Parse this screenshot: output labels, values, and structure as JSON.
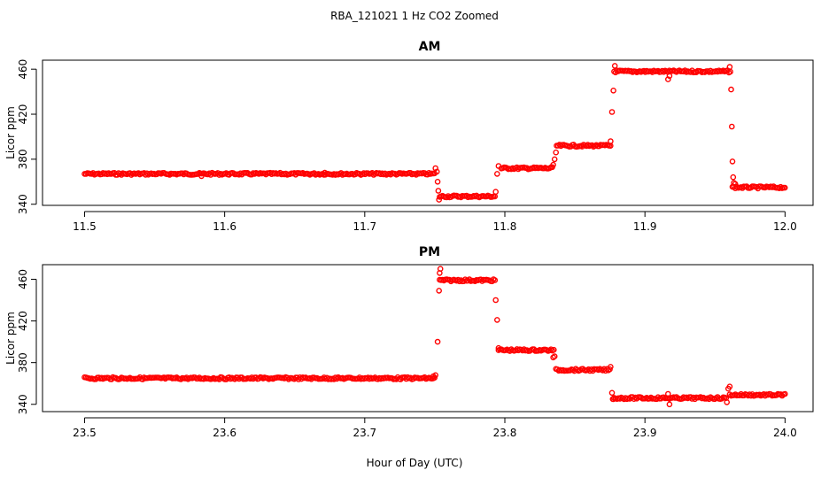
{
  "figure_title": "RBA_121021  1 Hz CO2 Zoomed",
  "shared_xlabel": "Hour of Day (UTC)",
  "marker_color": "#ff0000",
  "chart_data": [
    {
      "type": "scatter",
      "title": "AM",
      "ylabel": "Licor ppm",
      "xlim": [
        11.47,
        12.02
      ],
      "ylim": [
        339,
        468
      ],
      "xticks": [
        "11.5",
        "11.6",
        "11.7",
        "11.8",
        "11.9",
        "12.0"
      ],
      "yticks": [
        "340",
        "380",
        "420",
        "460"
      ],
      "grid": false,
      "segments": [
        {
          "x": [
            11.5,
            11.7505
          ],
          "y": 367
        },
        {
          "x": [
            11.7535,
            11.7935
          ],
          "y": 347
        },
        {
          "x": [
            11.7975,
            11.8345
          ],
          "y": 372
        },
        {
          "x": [
            11.837,
            11.8755
          ],
          "y": 392
        },
        {
          "x": [
            11.878,
            11.961
          ],
          "y": 458
        },
        {
          "x": [
            11.9625,
            12.0
          ],
          "y": 355
        }
      ],
      "points": [
        [
          11.5835,
          365
        ],
        [
          11.6715,
          368
        ],
        [
          11.7505,
          372
        ],
        [
          11.7515,
          369
        ],
        [
          11.752,
          360
        ],
        [
          11.7525,
          352
        ],
        [
          11.753,
          344
        ],
        [
          11.7935,
          351
        ],
        [
          11.7945,
          367
        ],
        [
          11.7955,
          374
        ],
        [
          11.8345,
          375
        ],
        [
          11.8355,
          380
        ],
        [
          11.8365,
          386
        ],
        [
          11.8755,
          396
        ],
        [
          11.8765,
          422
        ],
        [
          11.8775,
          441
        ],
        [
          11.8785,
          463
        ],
        [
          11.9165,
          451
        ],
        [
          11.9175,
          454
        ],
        [
          11.9605,
          462
        ],
        [
          11.9615,
          442
        ],
        [
          11.962,
          409
        ],
        [
          11.9625,
          378
        ],
        [
          11.963,
          364
        ],
        [
          11.9635,
          359
        ],
        [
          11.9645,
          358
        ]
      ]
    },
    {
      "type": "scatter",
      "title": "PM",
      "ylabel": "Licor ppm",
      "xlim": [
        23.47,
        24.02
      ],
      "ylim": [
        333,
        474
      ],
      "xticks": [
        "23.5",
        "23.6",
        "23.7",
        "23.8",
        "23.9",
        "24.0"
      ],
      "yticks": [
        "340",
        "380",
        "420",
        "460"
      ],
      "grid": false,
      "segments": [
        {
          "x": [
            23.5,
            23.7505
          ],
          "y": 365
        },
        {
          "x": [
            23.7535,
            23.7935
          ],
          "y": 459
        },
        {
          "x": [
            23.7955,
            23.8355
          ],
          "y": 392
        },
        {
          "x": [
            23.8365,
            23.8755
          ],
          "y": 373
        },
        {
          "x": [
            23.877,
            23.958
          ],
          "y": 346
        },
        {
          "x": [
            23.9605,
            24.0
          ],
          "y": 349
        }
      ],
      "points": [
        [
          23.749,
          367
        ],
        [
          23.7505,
          368
        ],
        [
          23.752,
          400
        ],
        [
          23.753,
          449
        ],
        [
          23.7535,
          466
        ],
        [
          23.754,
          470
        ],
        [
          23.7935,
          440
        ],
        [
          23.7945,
          421
        ],
        [
          23.7955,
          394
        ],
        [
          23.8345,
          385
        ],
        [
          23.8355,
          386
        ],
        [
          23.8755,
          376
        ],
        [
          23.8765,
          351
        ],
        [
          23.8775,
          345
        ],
        [
          23.9165,
          350
        ],
        [
          23.9175,
          340
        ],
        [
          23.9585,
          342
        ],
        [
          23.9595,
          355
        ],
        [
          23.9605,
          357
        ]
      ]
    }
  ]
}
